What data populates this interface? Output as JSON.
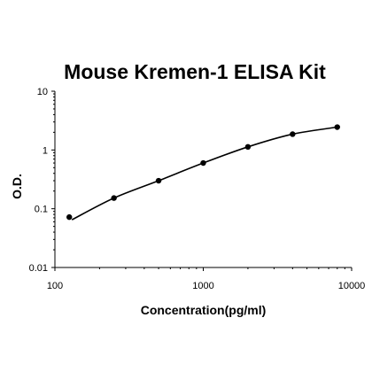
{
  "chart_data": {
    "type": "scatter",
    "title": "Mouse Kremen-1 ELISA Kit",
    "xlabel": "Concentration(pg/ml)",
    "ylabel": "O.D.",
    "x_scale": "log",
    "y_scale": "log",
    "xlim": [
      100,
      10000
    ],
    "ylim": [
      0.01,
      10
    ],
    "x_ticks": [
      "100",
      "1000",
      "10000"
    ],
    "y_ticks": [
      "0.01",
      "0.1",
      "1",
      "10"
    ],
    "grid": false,
    "legend": "none",
    "series": [
      {
        "points": [
          {
            "x": 125,
            "y": 0.072
          },
          {
            "x": 250,
            "y": 0.152
          },
          {
            "x": 500,
            "y": 0.3
          },
          {
            "x": 1000,
            "y": 0.6
          },
          {
            "x": 2000,
            "y": 1.13
          },
          {
            "x": 4000,
            "y": 1.86
          },
          {
            "x": 8000,
            "y": 2.45
          }
        ],
        "color": "#000000"
      }
    ]
  }
}
